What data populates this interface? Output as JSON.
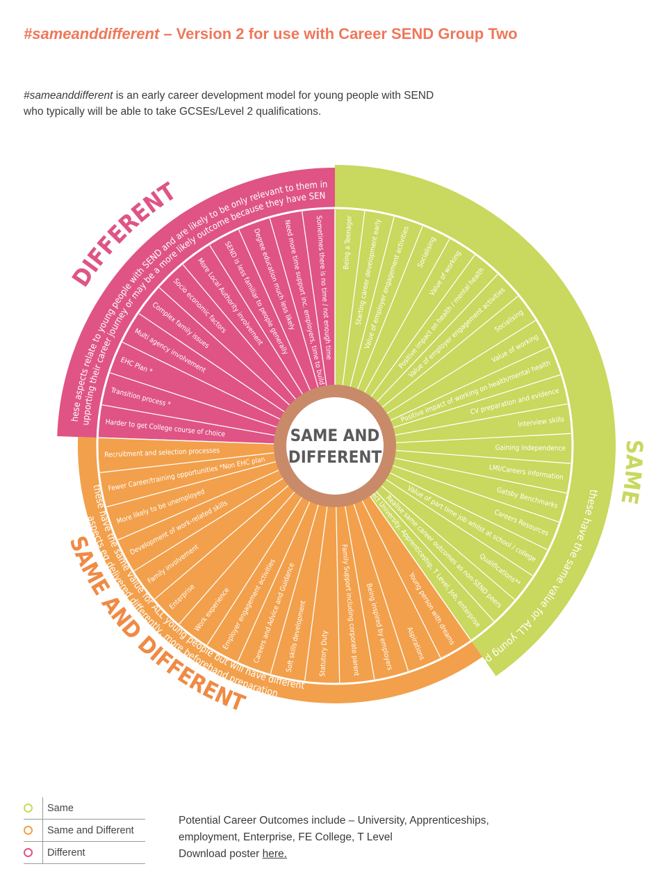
{
  "header": {
    "title_hashtag": "#sameanddifferent",
    "title_rest": " – Version 2 for use with Career SEND Group Two",
    "intro_hashtag": "#sameanddifferent",
    "intro_rest": " is an early career development model for young people with SEND who typically will be able to take GCSEs/Level 2 qualifications."
  },
  "colors": {
    "same": "#c9d85e",
    "same_and_different": "#f2a04b",
    "different": "#df5485",
    "same_label": "#c9d85e",
    "sad_label": "#f08a45",
    "different_label": "#df5485",
    "hub_text": "#5a5a5a"
  },
  "diagram": {
    "center_line1": "SAME AND",
    "center_line2": "DIFFERENT",
    "same": {
      "label": "SAME",
      "description": "these have the same value for ALL young people",
      "items": [
        "Being a Teenager",
        "Starting career development early",
        "Value of employer engagement activities",
        "Socialising",
        "Value of working",
        "Positive impact on health / mental health",
        "Value of employer engagement activities",
        "Socialising",
        "Value of working",
        "Positive impact of working on health/mental health",
        "CV preparation and evidence",
        "Interview skills",
        "Gaining independence",
        "LMI/Careers information",
        "Gatsby Benchmarks",
        "Careers Resources",
        "Value of part time job whilst at school / college",
        "Qualifications**",
        "Realise same career outcomes as non-SEND peers",
        "Expect University, Apprenticeship, T Level, Job, enterprise"
      ]
    },
    "same_and_different": {
      "label": "SAME AND DIFFERENT",
      "description_line1": "these have the same value for ALL young people but will have different",
      "description_line2": "aspects eg delivered differently, more beforehand preparation",
      "items": [
        "Young person with dreams",
        "Aspirations",
        "Being inspired by employers",
        "Family  Support including corporate parent",
        "Statutory Duty",
        "Soft skills development",
        "Careers and Advice and Guidance",
        "Employer engagement activities",
        "Work experience",
        "Enterprise",
        "Family involvement",
        "Development of work-related skills",
        "More likely to be unemployed",
        "Fewer Career/training opportunities *Non EHC plan",
        "Recruitment and selection processes"
      ]
    },
    "different": {
      "label": "DIFFERENT",
      "description_line1": "these aspects relate to young people with SEND and are likely to be only relevant to them in",
      "description_line2": "supporting their career journey or may be a more likely outcome because they have SEND",
      "items": [
        "Harder to get College course of choice",
        "Transition process *",
        "EHC Plan *",
        "Multi agency involvement",
        "Complex family issues",
        "Socio economic factors",
        "More Local Authority involvement",
        "SEND is less familiar to people generally",
        "Degree education much less likely",
        "Need more time support inc. employers, time to build trust",
        "Sometimes there is no time / not enough time"
      ]
    }
  },
  "legend": [
    {
      "label": "Same",
      "color": "#c9d85e"
    },
    {
      "label": "Same and Different",
      "color": "#f2a04b"
    },
    {
      "label": "Different",
      "color": "#df5485"
    }
  ],
  "footer": {
    "outcomes_line1": "Potential Career Outcomes include – University, Apprenticeships,",
    "outcomes_line2": "employment, Enterprise, FE College, T Level",
    "download_text": "Download poster ",
    "download_link": "here."
  }
}
